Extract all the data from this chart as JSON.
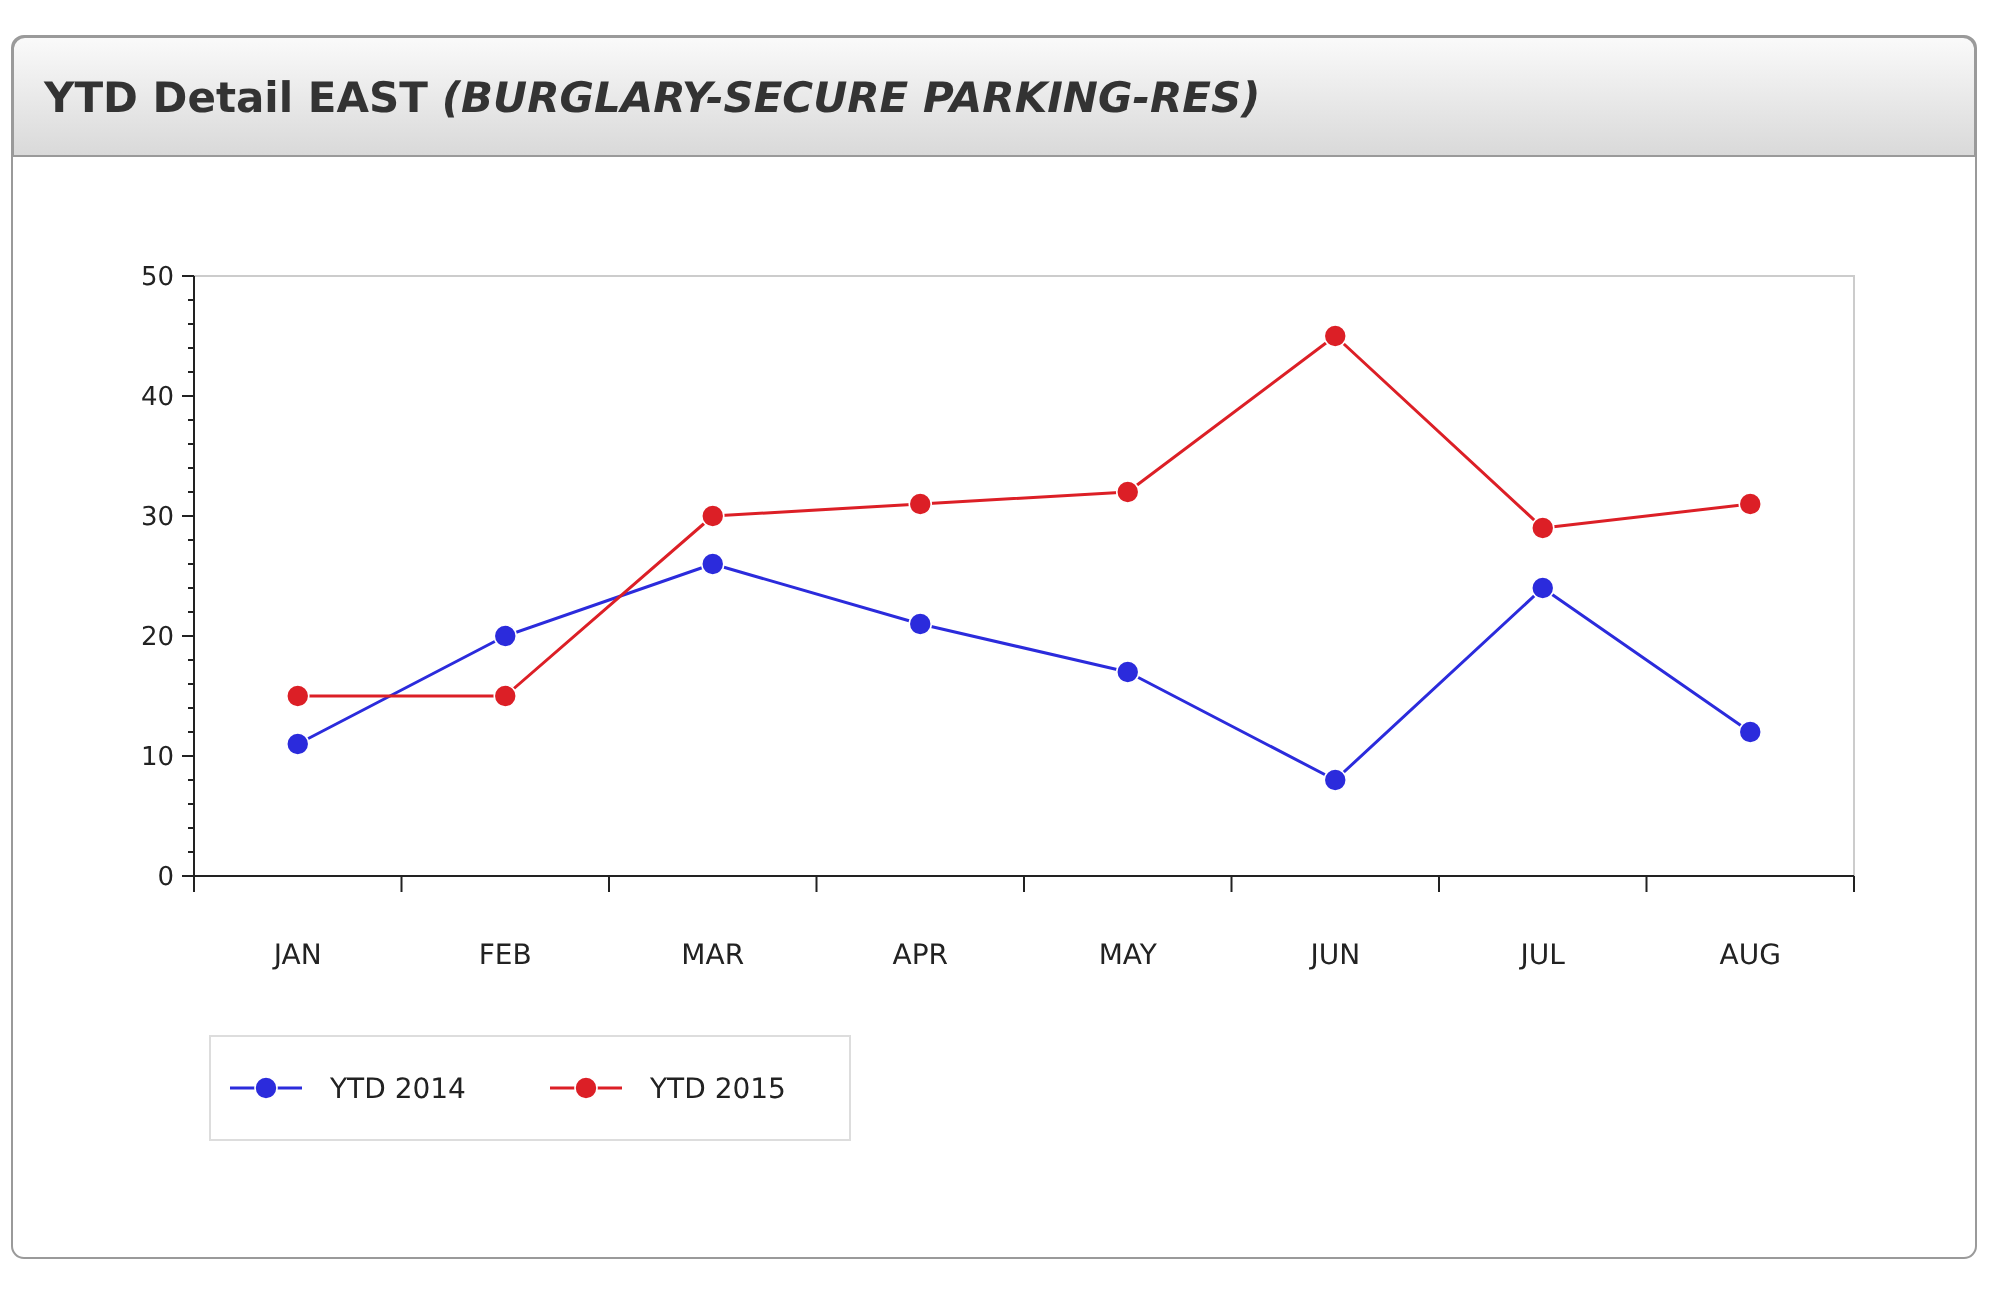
{
  "chart_data": {
    "type": "line",
    "title": "YTD Detail EAST",
    "subtitle": "(BURGLARY-SECURE PARKING-RES)",
    "categories": [
      "JAN",
      "FEB",
      "MAR",
      "APR",
      "MAY",
      "JUN",
      "JUL",
      "AUG"
    ],
    "series": [
      {
        "name": "YTD 2014",
        "color": "#2b2bdc",
        "values": [
          11,
          20,
          26,
          21,
          17,
          8,
          24,
          12
        ]
      },
      {
        "name": "YTD 2015",
        "color": "#dc1f26",
        "values": [
          15,
          15,
          30,
          31,
          32,
          45,
          29,
          31
        ]
      }
    ],
    "ylim": [
      0,
      50
    ],
    "yticks": [
      0,
      {
        "value": 2,
        "label": null
      },
      {
        "value": 4,
        "label": null
      },
      {
        "value": 6,
        "label": null
      },
      {
        "value": 8,
        "label": null
      },
      10,
      {
        "value": 12,
        "label": null
      },
      {
        "value": 14,
        "label": null
      },
      {
        "value": 16,
        "label": null
      },
      {
        "value": 18,
        "label": null
      },
      20,
      {
        "value": 22,
        "label": null
      },
      {
        "value": 24,
        "label": null
      },
      {
        "value": 26,
        "label": null
      },
      {
        "value": 28,
        "label": null
      },
      30,
      {
        "value": 32,
        "label": null
      },
      {
        "value": 34,
        "label": null
      },
      {
        "value": 36,
        "label": null
      },
      {
        "value": 38,
        "label": null
      },
      40,
      {
        "value": 42,
        "label": null
      },
      {
        "value": 44,
        "label": null
      },
      {
        "value": 46,
        "label": null
      },
      {
        "value": 48,
        "label": null
      },
      50
    ],
    "grid": false,
    "legend": "bottom",
    "marker": "circle",
    "line_style": "solid"
  }
}
